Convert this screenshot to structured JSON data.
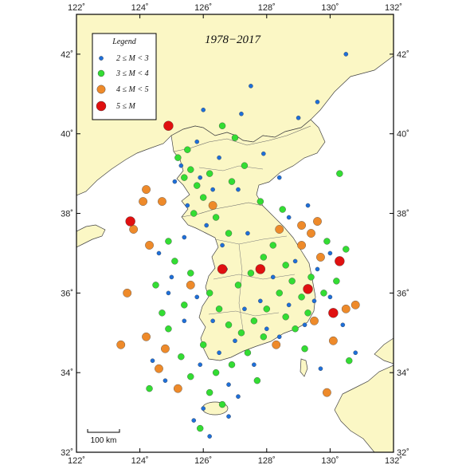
{
  "title": "1978−2017",
  "legend": {
    "title": "Legend",
    "items": [
      {
        "label": "2 ≤ M < 3",
        "color": "#1e6fd9"
      },
      {
        "label": "3 ≤ M < 4",
        "color": "#33dd33"
      },
      {
        "label": "4 ≤ M < 5",
        "color": "#ee8a2a"
      },
      {
        "label": "5 ≤ M",
        "color": "#e01010"
      }
    ]
  },
  "scale_bar": {
    "label": "100 km"
  },
  "axes": {
    "lon_ticks": [
      "122˚",
      "124˚",
      "126˚",
      "128˚",
      "130˚",
      "132˚"
    ],
    "lat_ticks": [
      "32˚",
      "34˚",
      "36˚",
      "38˚",
      "40˚",
      "42˚"
    ],
    "lon_range": [
      122,
      132
    ],
    "lat_range": [
      32,
      43
    ]
  },
  "colors": {
    "land": "#fbf7c5",
    "sea": "#ffffff",
    "border": "#444444"
  },
  "earthquakes": {
    "strong": [
      {
        "lon": 124.9,
        "lat": 40.2
      },
      {
        "lon": 123.7,
        "lat": 37.8
      },
      {
        "lon": 126.6,
        "lat": 36.6
      },
      {
        "lon": 127.8,
        "lat": 36.6
      },
      {
        "lon": 129.3,
        "lat": 36.1
      },
      {
        "lon": 130.3,
        "lat": 36.8
      },
      {
        "lon": 130.1,
        "lat": 35.5
      }
    ],
    "moderate": [
      {
        "lon": 124.2,
        "lat": 38.6
      },
      {
        "lon": 124.3,
        "lat": 37.2
      },
      {
        "lon": 123.4,
        "lat": 34.7
      },
      {
        "lon": 123.6,
        "lat": 36
      },
      {
        "lon": 124.2,
        "lat": 34.9
      },
      {
        "lon": 124.6,
        "lat": 34.1
      },
      {
        "lon": 125.2,
        "lat": 33.6
      },
      {
        "lon": 124.8,
        "lat": 34.6
      },
      {
        "lon": 129.1,
        "lat": 37.7
      },
      {
        "lon": 129.4,
        "lat": 37.5
      },
      {
        "lon": 129.1,
        "lat": 37.2
      },
      {
        "lon": 129.6,
        "lat": 37.8
      },
      {
        "lon": 129.7,
        "lat": 36.9
      },
      {
        "lon": 130.5,
        "lat": 35.6
      },
      {
        "lon": 130.8,
        "lat": 35.7
      },
      {
        "lon": 130.1,
        "lat": 34.8
      },
      {
        "lon": 129.9,
        "lat": 33.5
      },
      {
        "lon": 124.7,
        "lat": 38.3
      },
      {
        "lon": 126.3,
        "lat": 38.2
      },
      {
        "lon": 128.4,
        "lat": 37.6
      },
      {
        "lon": 125.6,
        "lat": 36.2
      },
      {
        "lon": 129.5,
        "lat": 35.3
      },
      {
        "lon": 128.3,
        "lat": 34.7
      },
      {
        "lon": 124.1,
        "lat": 38.3
      },
      {
        "lon": 123.8,
        "lat": 37.6
      }
    ],
    "light": [
      {
        "lon": 125.4,
        "lat": 38.9
      },
      {
        "lon": 125.6,
        "lat": 39.1
      },
      {
        "lon": 125.8,
        "lat": 38.7
      },
      {
        "lon": 126.0,
        "lat": 38.4
      },
      {
        "lon": 125.7,
        "lat": 38.0
      },
      {
        "lon": 126.4,
        "lat": 37.9
      },
      {
        "lon": 126.8,
        "lat": 37.5
      },
      {
        "lon": 125.2,
        "lat": 39.4
      },
      {
        "lon": 125.5,
        "lat": 39.6
      },
      {
        "lon": 126.2,
        "lat": 39.0
      },
      {
        "lon": 126.9,
        "lat": 38.8
      },
      {
        "lon": 127.3,
        "lat": 39.2
      },
      {
        "lon": 124.9,
        "lat": 37.3
      },
      {
        "lon": 125.1,
        "lat": 36.8
      },
      {
        "lon": 125.6,
        "lat": 36.5
      },
      {
        "lon": 126.2,
        "lat": 36.0
      },
      {
        "lon": 126.5,
        "lat": 35.6
      },
      {
        "lon": 126.8,
        "lat": 35.2
      },
      {
        "lon": 127.2,
        "lat": 35.0
      },
      {
        "lon": 127.6,
        "lat": 35.3
      },
      {
        "lon": 128.0,
        "lat": 35.6
      },
      {
        "lon": 128.4,
        "lat": 36.0
      },
      {
        "lon": 128.8,
        "lat": 36.3
      },
      {
        "lon": 129.1,
        "lat": 35.9
      },
      {
        "lon": 128.6,
        "lat": 35.4
      },
      {
        "lon": 127.9,
        "lat": 34.9
      },
      {
        "lon": 127.4,
        "lat": 34.5
      },
      {
        "lon": 126.9,
        "lat": 34.2
      },
      {
        "lon": 126.4,
        "lat": 34.0
      },
      {
        "lon": 126.2,
        "lat": 33.5
      },
      {
        "lon": 126.6,
        "lat": 33.2
      },
      {
        "lon": 125.9,
        "lat": 32.6
      },
      {
        "lon": 125.6,
        "lat": 33.9
      },
      {
        "lon": 125.3,
        "lat": 34.4
      },
      {
        "lon": 124.9,
        "lat": 35.1
      },
      {
        "lon": 125.4,
        "lat": 35.7
      },
      {
        "lon": 127.1,
        "lat": 36.2
      },
      {
        "lon": 127.5,
        "lat": 36.5
      },
      {
        "lon": 127.9,
        "lat": 36.9
      },
      {
        "lon": 128.2,
        "lat": 37.2
      },
      {
        "lon": 128.6,
        "lat": 36.7
      },
      {
        "lon": 129.4,
        "lat": 36.4
      },
      {
        "lon": 129.8,
        "lat": 36.0
      },
      {
        "lon": 129.3,
        "lat": 35.5
      },
      {
        "lon": 128.9,
        "lat": 35.1
      },
      {
        "lon": 130.2,
        "lat": 36.3
      },
      {
        "lon": 130.5,
        "lat": 37.1
      },
      {
        "lon": 129.9,
        "lat": 37.3
      },
      {
        "lon": 127.0,
        "lat": 39.9
      },
      {
        "lon": 126.6,
        "lat": 40.2
      },
      {
        "lon": 127.8,
        "lat": 38.3
      },
      {
        "lon": 128.5,
        "lat": 38.1
      },
      {
        "lon": 130.3,
        "lat": 39.0
      },
      {
        "lon": 124.5,
        "lat": 36.2
      },
      {
        "lon": 124.7,
        "lat": 35.5
      },
      {
        "lon": 126.0,
        "lat": 34.7
      },
      {
        "lon": 127.7,
        "lat": 33.8
      },
      {
        "lon": 129.2,
        "lat": 34.6
      },
      {
        "lon": 130.6,
        "lat": 34.3
      },
      {
        "lon": 124.3,
        "lat": 33.6
      }
    ],
    "minor": [
      {
        "lon": 125.1,
        "lat": 38.8
      },
      {
        "lon": 125.9,
        "lat": 38.9
      },
      {
        "lon": 126.3,
        "lat": 38.6
      },
      {
        "lon": 125.5,
        "lat": 38.2
      },
      {
        "lon": 126.1,
        "lat": 37.7
      },
      {
        "lon": 126.6,
        "lat": 37.2
      },
      {
        "lon": 125.3,
        "lat": 39.2
      },
      {
        "lon": 125.8,
        "lat": 39.8
      },
      {
        "lon": 126.5,
        "lat": 39.4
      },
      {
        "lon": 127.1,
        "lat": 38.6
      },
      {
        "lon": 124.6,
        "lat": 37.0
      },
      {
        "lon": 125.0,
        "lat": 36.4
      },
      {
        "lon": 125.8,
        "lat": 35.9
      },
      {
        "lon": 126.3,
        "lat": 35.3
      },
      {
        "lon": 127.0,
        "lat": 34.8
      },
      {
        "lon": 127.8,
        "lat": 35.8
      },
      {
        "lon": 128.2,
        "lat": 36.4
      },
      {
        "lon": 128.9,
        "lat": 36.8
      },
      {
        "lon": 129.6,
        "lat": 36.6
      },
      {
        "lon": 130.0,
        "lat": 35.9
      },
      {
        "lon": 129.2,
        "lat": 35.2
      },
      {
        "lon": 128.4,
        "lat": 34.9
      },
      {
        "lon": 127.6,
        "lat": 34.2
      },
      {
        "lon": 126.8,
        "lat": 33.7
      },
      {
        "lon": 126.0,
        "lat": 33.1
      },
      {
        "lon": 125.7,
        "lat": 32.8
      },
      {
        "lon": 126.2,
        "lat": 32.4
      },
      {
        "lon": 124.8,
        "lat": 33.8
      },
      {
        "lon": 124.4,
        "lat": 34.3
      },
      {
        "lon": 128.7,
        "lat": 37.9
      },
      {
        "lon": 129.3,
        "lat": 38.2
      },
      {
        "lon": 127.4,
        "lat": 37.5
      },
      {
        "lon": 127.2,
        "lat": 40.5
      },
      {
        "lon": 127.5,
        "lat": 41.2
      },
      {
        "lon": 129.0,
        "lat": 40.4
      },
      {
        "lon": 129.6,
        "lat": 40.8
      },
      {
        "lon": 130.5,
        "lat": 42.0
      },
      {
        "lon": 125.4,
        "lat": 37.4
      },
      {
        "lon": 124.9,
        "lat": 36.0
      },
      {
        "lon": 126.7,
        "lat": 36.6
      },
      {
        "lon": 127.3,
        "lat": 35.6
      },
      {
        "lon": 128.0,
        "lat": 35.1
      },
      {
        "lon": 128.7,
        "lat": 35.7
      },
      {
        "lon": 129.5,
        "lat": 35.8
      },
      {
        "lon": 130.4,
        "lat": 35.2
      },
      {
        "lon": 130.8,
        "lat": 34.5
      },
      {
        "lon": 129.7,
        "lat": 34.1
      },
      {
        "lon": 126.5,
        "lat": 34.5
      },
      {
        "lon": 125.9,
        "lat": 34.2
      },
      {
        "lon": 125.4,
        "lat": 35.3
      },
      {
        "lon": 127.9,
        "lat": 39.5
      },
      {
        "lon": 126.0,
        "lat": 40.6
      },
      {
        "lon": 128.4,
        "lat": 38.9
      },
      {
        "lon": 130.0,
        "lat": 37.0
      },
      {
        "lon": 127.1,
        "lat": 33.4
      },
      {
        "lon": 126.8,
        "lat": 32.9
      }
    ]
  }
}
